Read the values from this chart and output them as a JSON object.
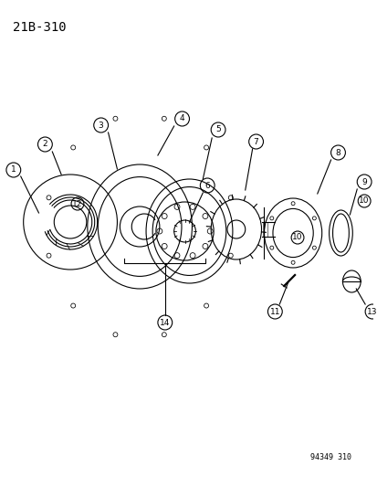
{
  "title": "21B-310",
  "footer": "94349 310",
  "background_color": "#ffffff",
  "line_color": "#000000",
  "part_labels": [
    "1",
    "2",
    "3",
    "4",
    "5",
    "6",
    "7",
    "8",
    "9",
    "10",
    "11",
    "12",
    "13",
    "14"
  ],
  "fig_width": 4.14,
  "fig_height": 5.33,
  "dpi": 100
}
